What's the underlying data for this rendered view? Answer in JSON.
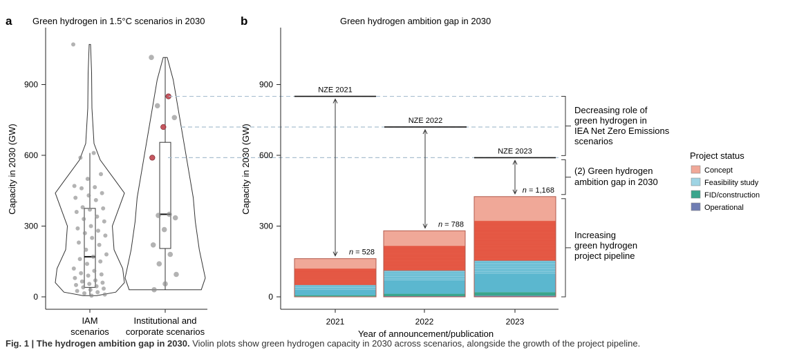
{
  "panel_a": {
    "letter": "a",
    "title": "Green hydrogen in 1.5°C scenarios in 2030",
    "ylabel": "Capacity in 2030 (GW)",
    "categories": [
      "IAM\nscenarios",
      "Institutional and\ncorporate scenarios"
    ]
  },
  "panel_b": {
    "letter": "b",
    "title": "Green hydrogen ambition gap in 2030",
    "ylabel": "Capacity in 2030 (GW)",
    "xlabel": "Year of announcement/publication",
    "nze_labels": [
      "NZE 2021",
      "NZE 2022",
      "NZE 2023"
    ],
    "n_labels": [
      "= 528",
      "= 788",
      "= 1,168"
    ],
    "n_prefix": "n",
    "annotations": [
      "Decreasing role of\ngreen hydrogen in\nIEA Net Zero Emissions\nscenarios",
      "(2) Green hydrogen\nambition gap in 2030",
      "Increasing\ngreen hydrogen\nproject pipeline"
    ]
  },
  "legend": {
    "title": "Project status",
    "items": [
      "Concept",
      "Feasibility study",
      "FID/construction",
      "Operational"
    ]
  },
  "caption": {
    "bold": "Fig. 1 | The hydrogen ambition gap in 2030.",
    "text": " Violin plots show green hydrogen capacity in 2030 across scenarios, alongside the growth of the project pipeline."
  },
  "colors": {
    "concept": "#f0a898",
    "concept_dark": "#e3503c",
    "feasibility": "#5bb7cf",
    "feasibility_light": "#9fd4e4",
    "fid": "#3aa58c",
    "operational": "#6f7db3",
    "point": "#8a8a8a",
    "highlight": "#c0454f",
    "dashed": "#a9bfd0"
  },
  "chart_data": [
    {
      "type": "scatter",
      "subtype": "violin-box",
      "title": "Green hydrogen in 1.5°C scenarios in 2030",
      "ylabel": "Capacity in 2030 (GW)",
      "ylim": [
        0,
        1100
      ],
      "yticks": [
        0,
        300,
        600,
        900
      ],
      "categories": [
        "IAM scenarios",
        "Institutional and corporate scenarios"
      ],
      "series": [
        {
          "name": "IAM scenarios",
          "box": {
            "min": 5,
            "q1": 40,
            "median": 170,
            "q3": 375,
            "max": 610
          },
          "violin_range": [
            5,
            1070
          ],
          "values": [
            1070,
            610,
            590,
            520,
            500,
            470,
            465,
            460,
            440,
            430,
            420,
            410,
            380,
            375,
            370,
            360,
            340,
            330,
            320,
            300,
            290,
            280,
            270,
            260,
            250,
            230,
            220,
            200,
            180,
            170,
            160,
            150,
            140,
            120,
            110,
            100,
            95,
            90,
            80,
            70,
            65,
            60,
            55,
            50,
            45,
            40,
            35,
            30,
            25,
            20,
            15,
            10,
            5
          ]
        },
        {
          "name": "Institutional and corporate scenarios",
          "box": {
            "min": 30,
            "q1": 205,
            "median": 350,
            "q3": 655,
            "max": 1015
          },
          "violin_range": [
            30,
            1015
          ],
          "values": [
            1015,
            850,
            810,
            760,
            720,
            590,
            350,
            345,
            335,
            285,
            220,
            180,
            140,
            95,
            55,
            30
          ],
          "highlighted": [
            850,
            720,
            590
          ]
        }
      ]
    },
    {
      "type": "bar",
      "subtype": "stacked",
      "title": "Green hydrogen ambition gap in 2030",
      "xlabel": "Year of announcement/publication",
      "ylabel": "Capacity in 2030 (GW)",
      "ylim": [
        0,
        1100
      ],
      "yticks": [
        0,
        300,
        600,
        900
      ],
      "categories": [
        "2021",
        "2022",
        "2023"
      ],
      "project_counts": [
        528,
        788,
        1168
      ],
      "nze_values": [
        850,
        720,
        590
      ],
      "series": [
        {
          "name": "Operational",
          "values": [
            2,
            3,
            5
          ]
        },
        {
          "name": "FID/construction",
          "values": [
            5,
            10,
            15
          ]
        },
        {
          "name": "Feasibility study",
          "values": [
            45,
            100,
            135
          ]
        },
        {
          "name": "Concept",
          "values": [
            110,
            167,
            270
          ]
        }
      ],
      "totals": [
        162,
        280,
        425
      ],
      "legend": [
        "Concept",
        "Feasibility study",
        "FID/construction",
        "Operational"
      ]
    }
  ]
}
